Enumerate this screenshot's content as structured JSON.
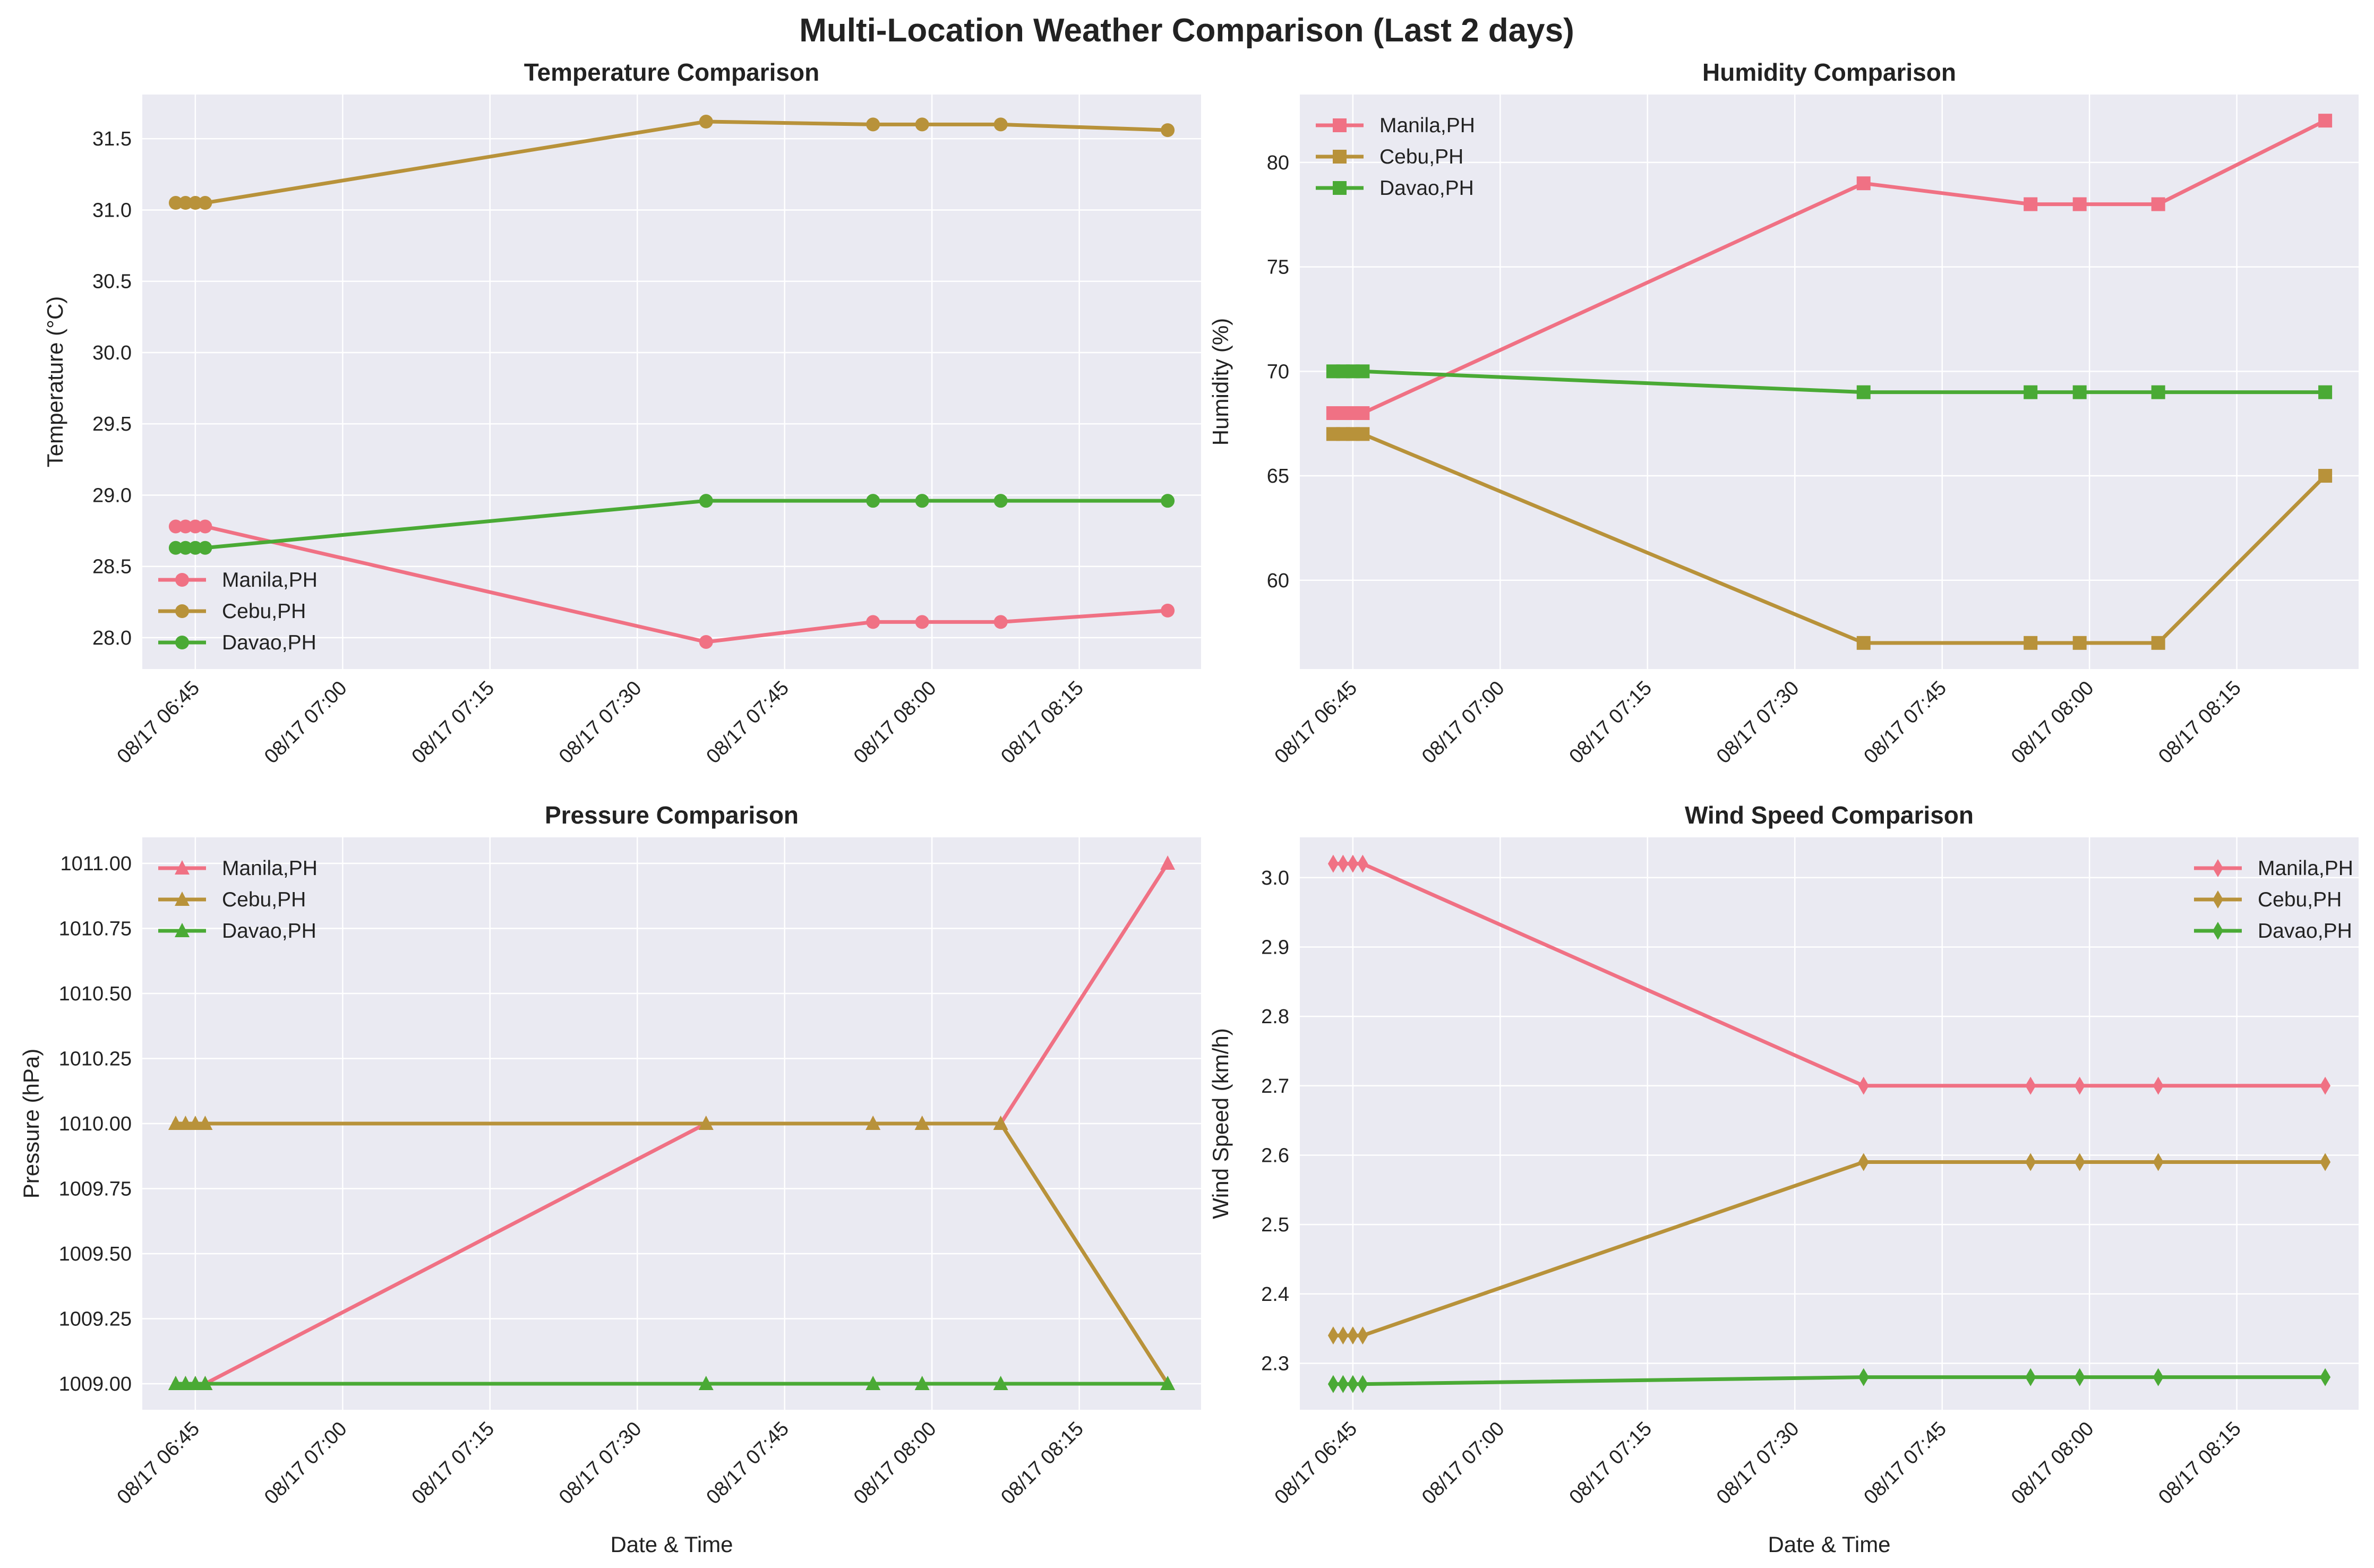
{
  "figure": {
    "title": "Multi-Location Weather Comparison (Last 2 days)"
  },
  "colors": {
    "Manila,PH": "#f07184",
    "Cebu,PH": "#b8923a",
    "Davao,PH": "#4aaa35",
    "panel_bg": "#eaeaf2",
    "grid": "#ffffff"
  },
  "chart_data": [
    {
      "type": "line",
      "title": "Temperature Comparison",
      "xlabel": "",
      "ylabel": "Temperature (°C)",
      "marker": "circle",
      "legend": "lower-left",
      "grid": true,
      "x": [
        "08/17 06:43",
        "08/17 06:44",
        "08/17 06:45",
        "08/17 06:46",
        "08/17 07:37",
        "08/17 07:54",
        "08/17 07:59",
        "08/17 08:07",
        "08/17 08:24"
      ],
      "ylim": [
        27.78,
        31.81
      ],
      "yticks": [
        28.0,
        28.5,
        29.0,
        29.5,
        30.0,
        30.5,
        31.0,
        31.5
      ],
      "ytick_labels": [
        "28.0",
        "28.5",
        "29.0",
        "29.5",
        "30.0",
        "30.5",
        "31.0",
        "31.5"
      ],
      "xtick_labels": [
        "08/17 06:45",
        "08/17 07:00",
        "08/17 07:15",
        "08/17 07:30",
        "08/17 07:45",
        "08/17 08:00",
        "08/17 08:15"
      ],
      "series": [
        {
          "name": "Manila,PH",
          "values": [
            28.78,
            28.78,
            28.78,
            28.78,
            27.97,
            28.11,
            28.11,
            28.11,
            28.19
          ]
        },
        {
          "name": "Cebu,PH",
          "values": [
            31.05,
            31.05,
            31.05,
            31.05,
            31.62,
            31.6,
            31.6,
            31.6,
            31.56
          ]
        },
        {
          "name": "Davao,PH",
          "values": [
            28.63,
            28.63,
            28.63,
            28.63,
            28.96,
            28.96,
            28.96,
            28.96,
            28.96
          ]
        }
      ]
    },
    {
      "type": "line",
      "title": "Humidity Comparison",
      "xlabel": "",
      "ylabel": "Humidity (%)",
      "marker": "square",
      "legend": "top-left",
      "grid": true,
      "x": [
        "08/17 06:43",
        "08/17 06:44",
        "08/17 06:45",
        "08/17 06:46",
        "08/17 07:37",
        "08/17 07:54",
        "08/17 07:59",
        "08/17 08:07",
        "08/17 08:24"
      ],
      "ylim": [
        55.75,
        83.25
      ],
      "yticks": [
        60,
        65,
        70,
        75,
        80
      ],
      "ytick_labels": [
        "60",
        "65",
        "70",
        "75",
        "80"
      ],
      "xtick_labels": [
        "08/17 06:45",
        "08/17 07:00",
        "08/17 07:15",
        "08/17 07:30",
        "08/17 07:45",
        "08/17 08:00",
        "08/17 08:15"
      ],
      "series": [
        {
          "name": "Manila,PH",
          "values": [
            68,
            68,
            68,
            68,
            79,
            78,
            78,
            78,
            82
          ]
        },
        {
          "name": "Cebu,PH",
          "values": [
            67,
            67,
            67,
            67,
            57,
            57,
            57,
            57,
            65
          ]
        },
        {
          "name": "Davao,PH",
          "values": [
            70,
            70,
            70,
            70,
            69,
            69,
            69,
            69,
            69
          ]
        }
      ]
    },
    {
      "type": "line",
      "title": "Pressure Comparison",
      "xlabel": "Date & Time",
      "ylabel": "Pressure (hPa)",
      "marker": "triangle",
      "legend": "top-left",
      "grid": true,
      "x": [
        "08/17 06:43",
        "08/17 06:44",
        "08/17 06:45",
        "08/17 06:46",
        "08/17 07:37",
        "08/17 07:54",
        "08/17 07:59",
        "08/17 08:07",
        "08/17 08:24"
      ],
      "ylim": [
        1008.9,
        1011.1
      ],
      "yticks": [
        1009.0,
        1009.25,
        1009.5,
        1009.75,
        1010.0,
        1010.25,
        1010.5,
        1010.75,
        1011.0
      ],
      "ytick_labels": [
        "1009.00",
        "1009.25",
        "1009.50",
        "1009.75",
        "1010.00",
        "1010.25",
        "1010.50",
        "1010.75",
        "1011.00"
      ],
      "xtick_labels": [
        "08/17 06:45",
        "08/17 07:00",
        "08/17 07:15",
        "08/17 07:30",
        "08/17 07:45",
        "08/17 08:00",
        "08/17 08:15"
      ],
      "series": [
        {
          "name": "Manila,PH",
          "values": [
            1009,
            1009,
            1009,
            1009,
            1010,
            1010,
            1010,
            1010,
            1011
          ]
        },
        {
          "name": "Cebu,PH",
          "values": [
            1010,
            1010,
            1010,
            1010,
            1010,
            1010,
            1010,
            1010,
            1009
          ]
        },
        {
          "name": "Davao,PH",
          "values": [
            1009,
            1009,
            1009,
            1009,
            1009,
            1009,
            1009,
            1009,
            1009
          ]
        }
      ]
    },
    {
      "type": "line",
      "title": "Wind Speed Comparison",
      "xlabel": "Date & Time",
      "ylabel": "Wind Speed (km/h)",
      "marker": "diamond",
      "legend": "top-right",
      "grid": true,
      "x": [
        "08/17 06:43",
        "08/17 06:44",
        "08/17 06:45",
        "08/17 06:46",
        "08/17 07:37",
        "08/17 07:54",
        "08/17 07:59",
        "08/17 08:07",
        "08/17 08:24"
      ],
      "ylim": [
        2.233,
        3.058
      ],
      "yticks": [
        2.3,
        2.4,
        2.5,
        2.6,
        2.7,
        2.8,
        2.9,
        3.0
      ],
      "ytick_labels": [
        "2.3",
        "2.4",
        "2.5",
        "2.6",
        "2.7",
        "2.8",
        "2.9",
        "3.0"
      ],
      "xtick_labels": [
        "08/17 06:45",
        "08/17 07:00",
        "08/17 07:15",
        "08/17 07:30",
        "08/17 07:45",
        "08/17 08:00",
        "08/17 08:15"
      ],
      "series": [
        {
          "name": "Manila,PH",
          "values": [
            3.02,
            3.02,
            3.02,
            3.02,
            2.7,
            2.7,
            2.7,
            2.7,
            2.7
          ]
        },
        {
          "name": "Cebu,PH",
          "values": [
            2.34,
            2.34,
            2.34,
            2.34,
            2.59,
            2.59,
            2.59,
            2.59,
            2.59
          ]
        },
        {
          "name": "Davao,PH",
          "values": [
            2.27,
            2.27,
            2.27,
            2.27,
            2.28,
            2.28,
            2.28,
            2.28,
            2.28
          ]
        }
      ]
    }
  ]
}
